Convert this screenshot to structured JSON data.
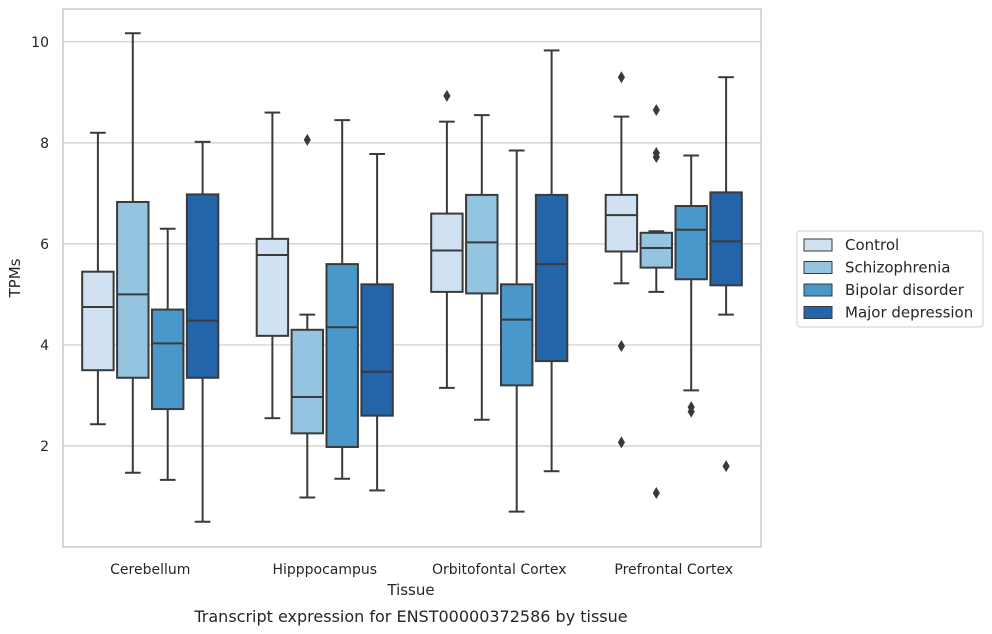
{
  "chart_data": {
    "type": "boxplot",
    "xlabel": "Tissue",
    "ylabel": "TPMs",
    "caption": "Transcript expression for ENST00000372586 by tissue",
    "categories": [
      "Cerebellum",
      "Hipppocampus",
      "Orbitofontal Cortex",
      "Prefrontal Cortex"
    ],
    "ylim": [
      0,
      10.65
    ],
    "yticks": [
      2,
      4,
      6,
      8,
      10
    ],
    "grid": true,
    "legend_position": "right",
    "series": [
      {
        "name": "Control",
        "color": "#d0e1f2",
        "boxes": [
          {
            "whislo": 2.43,
            "q1": 3.5,
            "med": 4.75,
            "q3": 5.45,
            "whishi": 8.2,
            "fliers": []
          },
          {
            "whislo": 2.55,
            "q1": 4.18,
            "med": 5.78,
            "q3": 6.1,
            "whishi": 8.6,
            "fliers": []
          },
          {
            "whislo": 3.15,
            "q1": 5.05,
            "med": 5.87,
            "q3": 6.6,
            "whishi": 8.42,
            "fliers": [
              8.93
            ]
          },
          {
            "whislo": 5.22,
            "q1": 5.85,
            "med": 6.57,
            "q3": 6.97,
            "whishi": 8.52,
            "fliers": [
              9.3,
              3.98,
              2.07
            ]
          }
        ]
      },
      {
        "name": "Schizophrenia",
        "color": "#94c4df",
        "boxes": [
          {
            "whislo": 1.47,
            "q1": 3.35,
            "med": 5.0,
            "q3": 6.83,
            "whishi": 10.17,
            "fliers": []
          },
          {
            "whislo": 0.98,
            "q1": 2.25,
            "med": 2.97,
            "q3": 4.3,
            "whishi": 4.6,
            "fliers": [
              8.06
            ]
          },
          {
            "whislo": 2.52,
            "q1": 5.02,
            "med": 6.03,
            "q3": 6.97,
            "whishi": 8.55,
            "fliers": []
          },
          {
            "whislo": 5.05,
            "q1": 5.53,
            "med": 5.92,
            "q3": 6.22,
            "whishi": 6.25,
            "fliers": [
              8.65,
              7.8,
              7.72,
              1.07
            ]
          }
        ]
      },
      {
        "name": "Bipolar disorder",
        "color": "#4a98c9",
        "boxes": [
          {
            "whislo": 1.33,
            "q1": 2.73,
            "med": 4.03,
            "q3": 4.7,
            "whishi": 6.3,
            "fliers": []
          },
          {
            "whislo": 1.35,
            "q1": 1.98,
            "med": 4.35,
            "q3": 5.6,
            "whishi": 8.45,
            "fliers": []
          },
          {
            "whislo": 0.7,
            "q1": 3.2,
            "med": 4.5,
            "q3": 5.2,
            "whishi": 7.85,
            "fliers": []
          },
          {
            "whislo": 3.1,
            "q1": 5.3,
            "med": 6.28,
            "q3": 6.75,
            "whishi": 7.75,
            "fliers": [
              2.77,
              2.68
            ]
          }
        ]
      },
      {
        "name": "Major depression",
        "color": "#2464a8",
        "boxes": [
          {
            "whislo": 0.5,
            "q1": 3.35,
            "med": 4.48,
            "q3": 6.98,
            "whishi": 8.02,
            "fliers": []
          },
          {
            "whislo": 1.12,
            "q1": 2.6,
            "med": 3.47,
            "q3": 5.2,
            "whishi": 7.78,
            "fliers": []
          },
          {
            "whislo": 1.5,
            "q1": 3.68,
            "med": 5.6,
            "q3": 6.97,
            "whishi": 9.83,
            "fliers": []
          },
          {
            "whislo": 4.6,
            "q1": 5.18,
            "med": 6.05,
            "q3": 7.02,
            "whishi": 9.3,
            "fliers": [
              1.6
            ]
          }
        ]
      }
    ]
  }
}
